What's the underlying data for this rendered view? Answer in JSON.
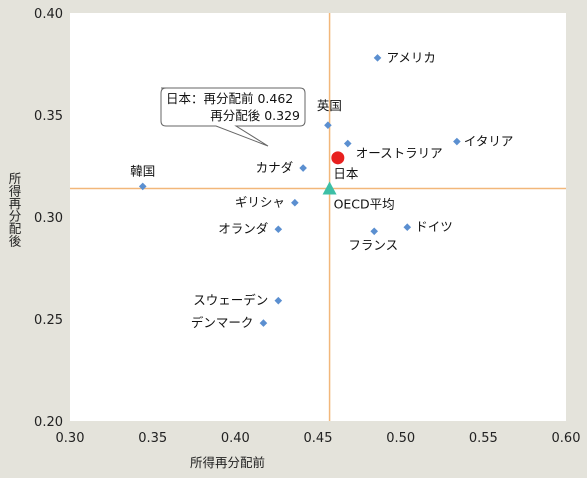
{
  "chart_data": {
    "type": "scatter",
    "title": "",
    "xlabel": "所得再分配前",
    "ylabel": "所得再分配後",
    "xlim": [
      0.3,
      0.6
    ],
    "ylim": [
      0.2,
      0.4
    ],
    "xticks": [
      "0.30",
      "0.35",
      "0.40",
      "0.45",
      "0.50",
      "0.55",
      "0.60"
    ],
    "yticks": [
      "0.20",
      "0.25",
      "0.30",
      "0.35",
      "0.40"
    ],
    "grid": false,
    "reference_lines": {
      "x": 0.457,
      "y": 0.314
    },
    "points": [
      {
        "name": "アメリカ",
        "x": 0.486,
        "y": 0.378
      },
      {
        "name": "英国",
        "x": 0.456,
        "y": 0.345
      },
      {
        "name": "オーストラリア",
        "x": 0.468,
        "y": 0.336
      },
      {
        "name": "イタリア",
        "x": 0.534,
        "y": 0.337
      },
      {
        "name": "韓国",
        "x": 0.344,
        "y": 0.315
      },
      {
        "name": "カナダ",
        "x": 0.441,
        "y": 0.324
      },
      {
        "name": "ギリシャ",
        "x": 0.436,
        "y": 0.307
      },
      {
        "name": "オランダ",
        "x": 0.426,
        "y": 0.294
      },
      {
        "name": "フランス",
        "x": 0.484,
        "y": 0.293
      },
      {
        "name": "ドイツ",
        "x": 0.504,
        "y": 0.295
      },
      {
        "name": "スウェーデン",
        "x": 0.426,
        "y": 0.259
      },
      {
        "name": "デンマーク",
        "x": 0.417,
        "y": 0.248
      }
    ],
    "japan": {
      "name": "日本",
      "x": 0.462,
      "y": 0.329,
      "color": "#e8201e"
    },
    "oecd": {
      "name": "OECD平均",
      "x": 0.457,
      "y": 0.314,
      "color": "#3dbfa6"
    },
    "callout": {
      "line1": "日本：再分配前 0.462",
      "line2": "再分配後 0.329"
    },
    "colors": {
      "point": "#5b8fd0",
      "refline": "#f2b77a",
      "plot_bg": "#ffffff",
      "page_bg": "#e4e3db"
    }
  }
}
